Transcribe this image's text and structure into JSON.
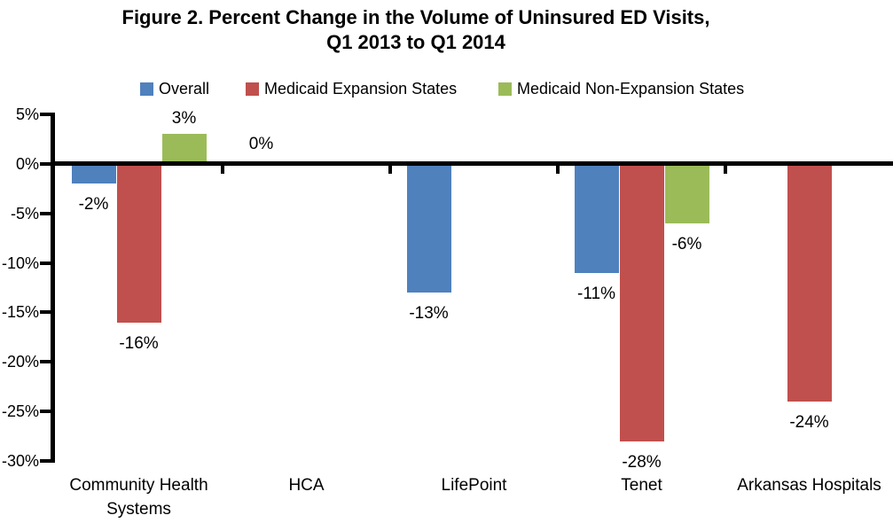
{
  "chart_data": {
    "type": "bar",
    "title": "Figure 2. Percent Change in the Volume of Uninsured ED Visits, Q1 2013 to Q1 2014",
    "title_lines": [
      "Figure 2. Percent Change in the Volume of Uninsured ED Visits,",
      "Q1 2013 to Q1 2014"
    ],
    "categories": [
      "Community Health Systems",
      "HCA",
      "LifePoint",
      "Tenet",
      "Arkansas Hospitals"
    ],
    "series": [
      {
        "name": "Overall",
        "color": "#4F81BD",
        "values": [
          -2,
          0,
          -13,
          -11,
          null
        ]
      },
      {
        "name": "Medicaid Expansion States",
        "color": "#C0504D",
        "values": [
          -16,
          null,
          null,
          -28,
          -24
        ]
      },
      {
        "name": "Medicaid Non-Expansion States",
        "color": "#9BBB59",
        "values": [
          3,
          null,
          null,
          -6,
          null
        ]
      }
    ],
    "data_labels": {
      "Community Health Systems": [
        "-2%",
        "-16%",
        "3%"
      ],
      "HCA": [
        "0%",
        null,
        null
      ],
      "LifePoint": [
        "-13%",
        null,
        null
      ],
      "Tenet": [
        "-11%",
        "-28%",
        "-6%"
      ],
      "Arkansas Hospitals": [
        null,
        "-24%",
        null
      ]
    },
    "value_suffix": "%",
    "xlabel": "",
    "ylabel": "",
    "ylim": [
      -30,
      5
    ],
    "ytick_step": 5,
    "ytick_labels": [
      "5%",
      "0%",
      "-5%",
      "-10%",
      "-15%",
      "-20%",
      "-25%",
      "-30%"
    ],
    "legend_position": "top",
    "grid": false,
    "axis_color": "#000000",
    "background_color": "#FFFFFF"
  }
}
